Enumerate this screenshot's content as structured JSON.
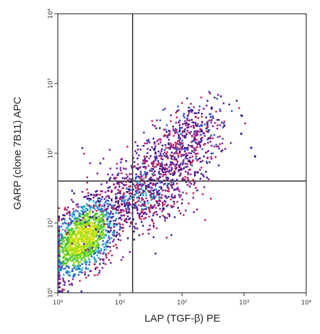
{
  "chart_data": {
    "type": "scatter",
    "title": "",
    "xlabel": "LAP (TGF-β) PE",
    "ylabel": "GARP (clone 7B11) APC",
    "x_scale": "log",
    "y_scale": "log",
    "xlim": [
      1,
      10000
    ],
    "ylim": [
      1,
      10000
    ],
    "x_ticks": [
      "10⁰",
      "10¹",
      "10²",
      "10³",
      "10⁴"
    ],
    "y_ticks": [
      "10⁰",
      "10¹",
      "10²",
      "10³",
      "10⁴"
    ],
    "x_tick_values": [
      1,
      10,
      100,
      1000,
      10000
    ],
    "y_tick_values": [
      1,
      10,
      100,
      1000,
      10000
    ],
    "quadrant_gates": {
      "x": 16,
      "y": 40
    },
    "grid": false,
    "legend": "none",
    "point_colors_by_density": [
      "#3a1c8c",
      "#7a1fa2",
      "#c0245a",
      "#2f5fd0",
      "#22b0c8",
      "#3ac03a",
      "#9be01a",
      "#f0e020"
    ],
    "populations": [
      {
        "name": "",
        "center": [
          2.5,
          6
        ],
        "spread": [
          0.28,
          0.33
        ],
        "count": 1400,
        "density": "high"
      },
      {
        "name": "",
        "center": [
          25,
          30
        ],
        "spread": [
          0.45,
          0.4
        ],
        "count": 900,
        "density": "medium"
      },
      {
        "name": "",
        "center": [
          120,
          160
        ],
        "spread": [
          0.35,
          0.32
        ],
        "count": 450,
        "density": "low"
      }
    ],
    "outliers": [
      {
        "x": 900,
        "y": 190
      },
      {
        "x": 1300,
        "y": 120
      },
      {
        "x": 1500,
        "y": 90
      },
      {
        "x": 300,
        "y": 450
      }
    ]
  }
}
